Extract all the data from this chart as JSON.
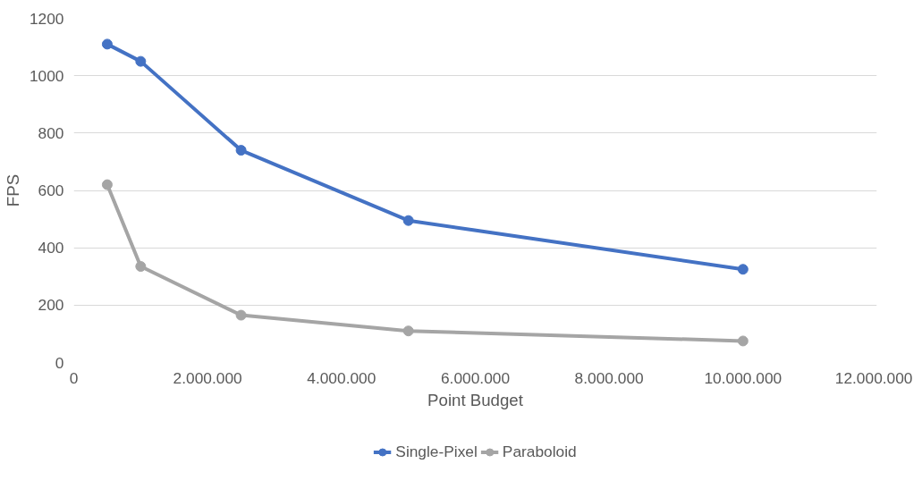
{
  "chart_data": {
    "type": "line",
    "xlabel": "Point Budget",
    "ylabel": "FPS",
    "x": [
      500000,
      1000000,
      2500000,
      5000000,
      10000000
    ],
    "series": [
      {
        "name": "Single-Pixel",
        "color": "#4472c4",
        "values": [
          1110,
          1050,
          740,
          495,
          325
        ]
      },
      {
        "name": "Paraboloid",
        "color": "#a5a5a5",
        "values": [
          620,
          335,
          165,
          110,
          75
        ]
      }
    ],
    "xlim": [
      0,
      12000000
    ],
    "xticks": [
      0,
      {
        "value": 2000000,
        "label": "2.000.000"
      },
      {
        "value": 4000000,
        "label": "4.000.000"
      },
      {
        "value": 6000000,
        "label": "6.000.000"
      },
      {
        "value": 8000000,
        "label": "8.000.000"
      },
      {
        "value": 10000000,
        "label": "10.000.000"
      },
      {
        "value": 12000000,
        "label": "12.000.000"
      }
    ],
    "ylim": [
      0,
      1200
    ],
    "yticks": [
      0,
      200,
      400,
      600,
      800,
      1000,
      1200
    ],
    "grid": "y",
    "legend": "bottom",
    "marker": "circle",
    "line_style": "solid"
  }
}
